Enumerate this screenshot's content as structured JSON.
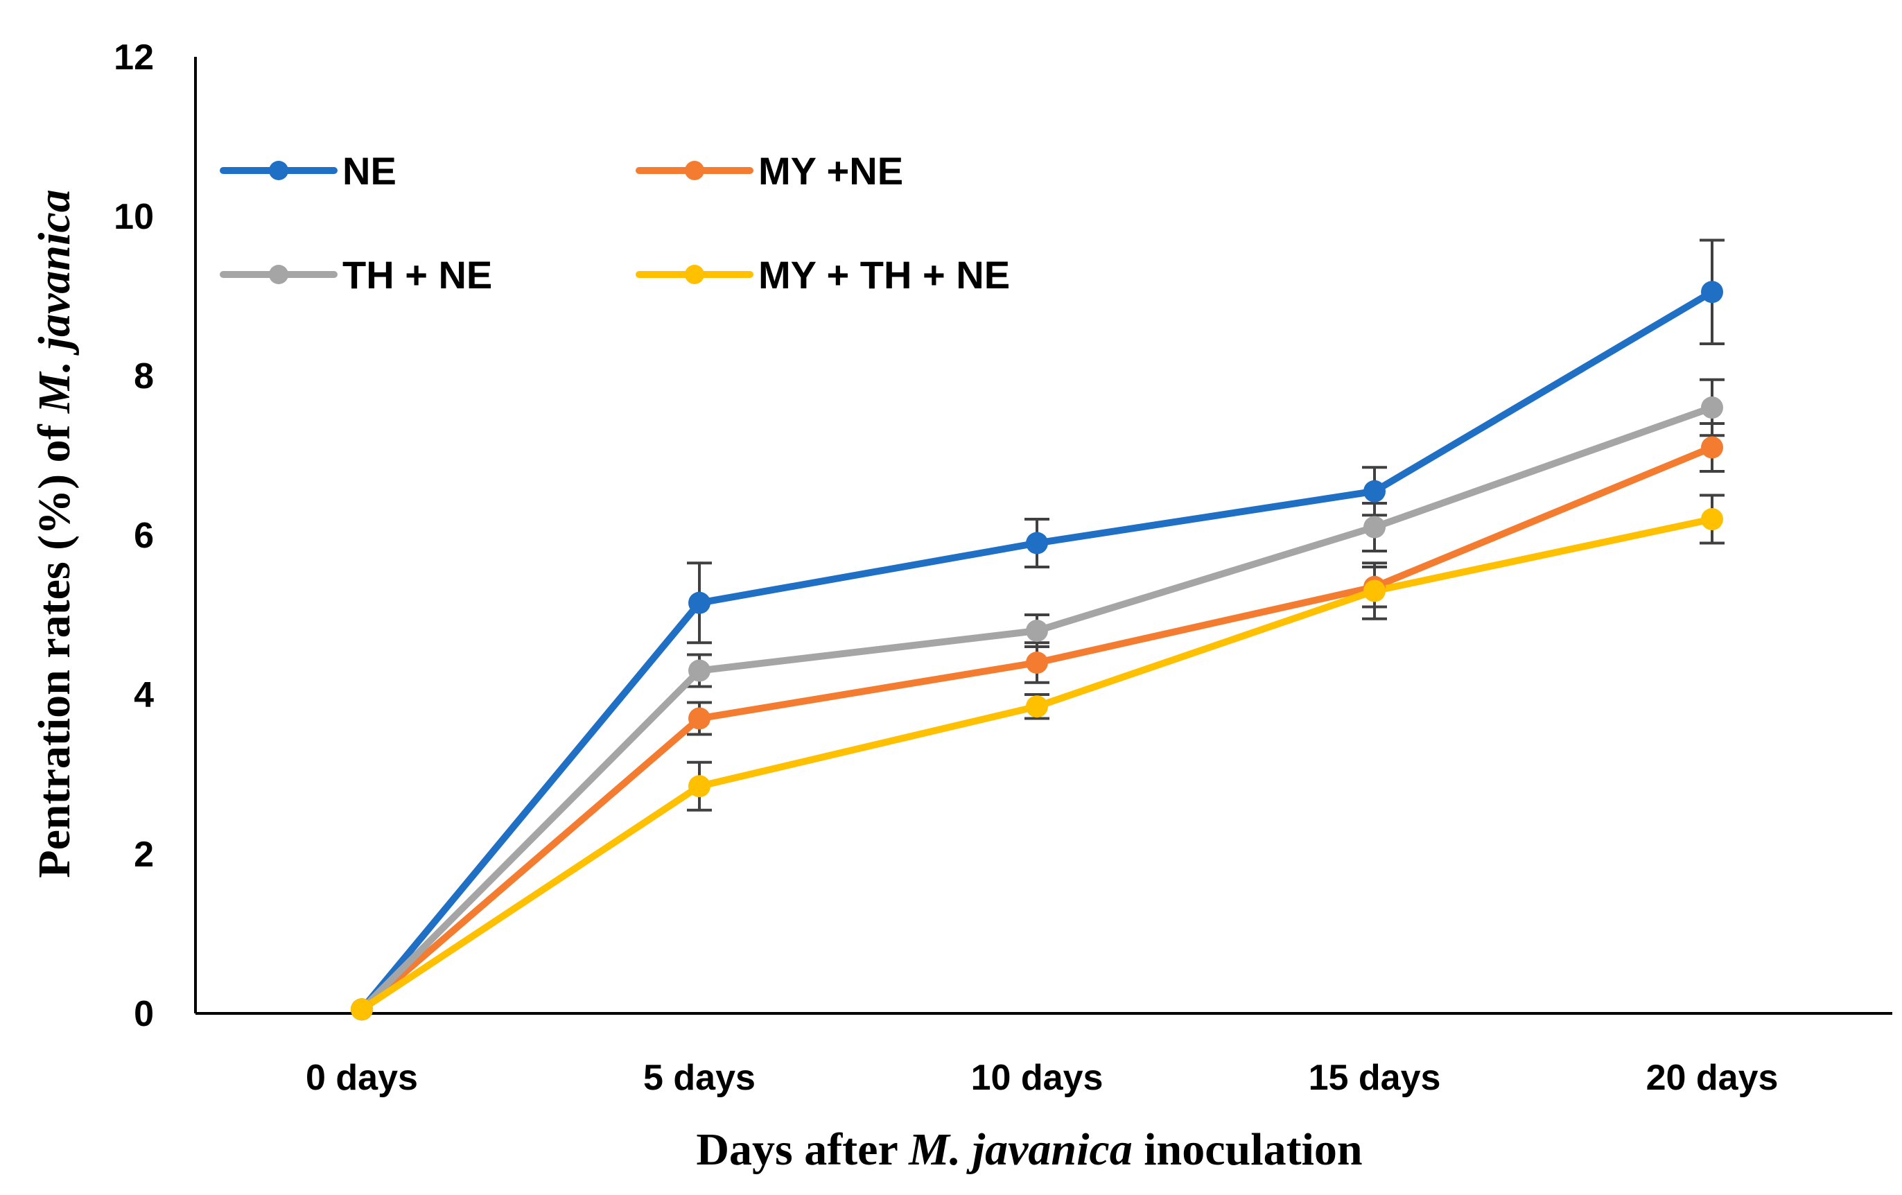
{
  "chart_data": {
    "type": "line",
    "title": "",
    "categories": [
      "0 days",
      "5 days",
      "10 days",
      "15 days",
      "20  days"
    ],
    "xlabel": {
      "prefix": "Days after ",
      "italic": "M. javanica",
      "suffix": " inoculation"
    },
    "ylabel": {
      "prefix": "Pentration rates (%) of ",
      "italic": "M. javanica",
      "suffix": ""
    },
    "ylim": [
      0,
      12
    ],
    "yticks": [
      0,
      2,
      4,
      6,
      8,
      10,
      12
    ],
    "ytick_labels": [
      "0",
      "2",
      "4",
      "6",
      "8",
      "10",
      "12"
    ],
    "grid": false,
    "legend_position": "top-left",
    "series": [
      {
        "name": "NE",
        "color": "#1F6FC5",
        "values": [
          0.05,
          5.15,
          5.9,
          6.55,
          9.05
        ],
        "errors": [
          0,
          0.5,
          0.3,
          0.3,
          0.65
        ]
      },
      {
        "name": "MY +NE",
        "color": "#F47C30",
        "values": [
          0.05,
          3.7,
          4.4,
          5.35,
          7.1
        ],
        "errors": [
          0,
          0.2,
          0.25,
          0.25,
          0.3
        ]
      },
      {
        "name": "TH + NE",
        "color": "#A5A5A5",
        "values": [
          0.05,
          4.3,
          4.8,
          6.1,
          7.6
        ],
        "errors": [
          0,
          0.2,
          0.2,
          0.3,
          0.35
        ]
      },
      {
        "name": "MY + TH + NE",
        "color": "#FFC000",
        "values": [
          0.05,
          2.85,
          3.85,
          5.3,
          6.2
        ],
        "errors": [
          0,
          0.3,
          0.15,
          0.35,
          0.3
        ]
      }
    ]
  }
}
